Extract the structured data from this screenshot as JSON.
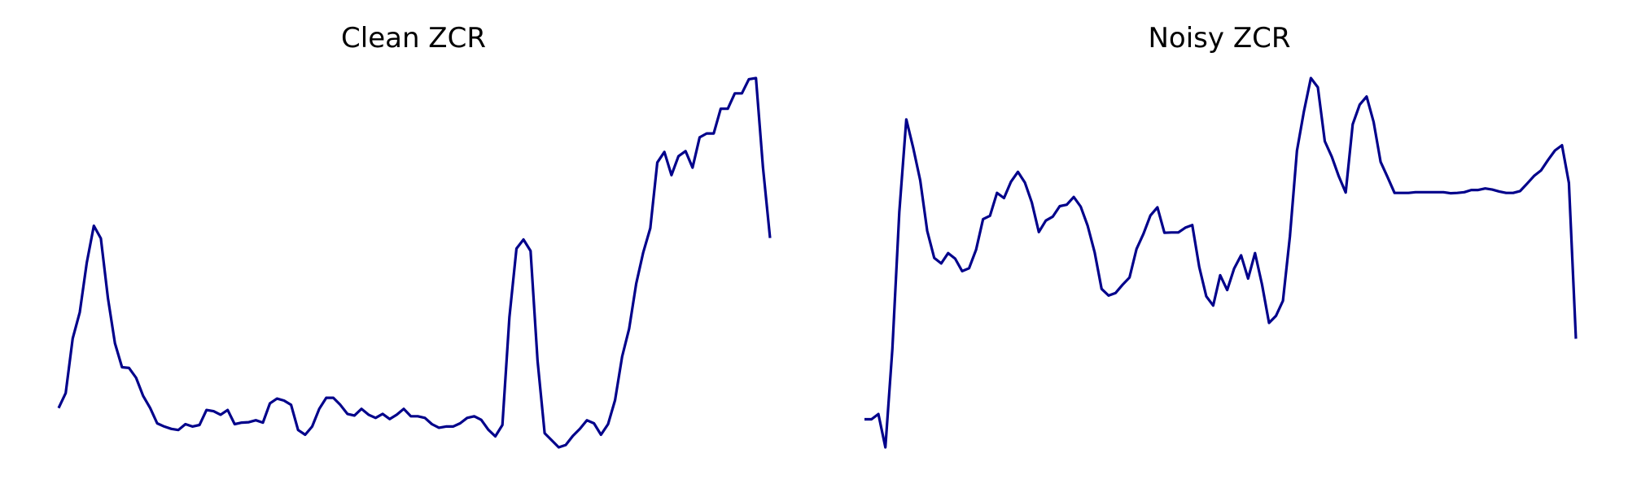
{
  "colors": {
    "line": "#00008b",
    "background": "#ffffff"
  },
  "chart_data": [
    {
      "type": "line",
      "title": "Clean ZCR",
      "axes_visible": false,
      "grid": false,
      "legend": "none",
      "series": [
        {
          "values": [
            0.16,
            0.198,
            0.337,
            0.404,
            0.53,
            0.624,
            0.592,
            0.44,
            0.325,
            0.264,
            0.262,
            0.237,
            0.191,
            0.16,
            0.121,
            0.113,
            0.107,
            0.104,
            0.119,
            0.113,
            0.117,
            0.155,
            0.152,
            0.143,
            0.155,
            0.119,
            0.123,
            0.124,
            0.129,
            0.123,
            0.172,
            0.184,
            0.179,
            0.168,
            0.104,
            0.092,
            0.113,
            0.158,
            0.186,
            0.186,
            0.168,
            0.145,
            0.141,
            0.158,
            0.143,
            0.135,
            0.145,
            0.132,
            0.143,
            0.158,
            0.139,
            0.139,
            0.135,
            0.119,
            0.11,
            0.113,
            0.113,
            0.121,
            0.135,
            0.139,
            0.13,
            0.105,
            0.088,
            0.117,
            0.391,
            0.566,
            0.589,
            0.56,
            0.28,
            0.096,
            0.078,
            0.06,
            0.066,
            0.089,
            0.107,
            0.129,
            0.121,
            0.092,
            0.119,
            0.18,
            0.291,
            0.362,
            0.477,
            0.556,
            0.618,
            0.785,
            0.812,
            0.753,
            0.801,
            0.814,
            0.772,
            0.849,
            0.859,
            0.859,
            0.922,
            0.922,
            0.961,
            0.961,
            0.997,
            1.0,
            0.773,
            0.593
          ]
        }
      ]
    },
    {
      "type": "line",
      "title": "Noisy ZCR",
      "axes_visible": false,
      "grid": false,
      "legend": "none",
      "series": [
        {
          "values": [
            0.076,
            0.076,
            0.09,
            0.0,
            0.267,
            0.637,
            0.888,
            0.81,
            0.723,
            0.586,
            0.513,
            0.498,
            0.526,
            0.511,
            0.477,
            0.485,
            0.535,
            0.618,
            0.627,
            0.689,
            0.675,
            0.719,
            0.746,
            0.717,
            0.663,
            0.583,
            0.614,
            0.625,
            0.653,
            0.657,
            0.678,
            0.652,
            0.6,
            0.528,
            0.429,
            0.411,
            0.418,
            0.44,
            0.46,
            0.537,
            0.578,
            0.628,
            0.65,
            0.581,
            0.582,
            0.582,
            0.595,
            0.602,
            0.488,
            0.409,
            0.384,
            0.466,
            0.426,
            0.484,
            0.52,
            0.457,
            0.526,
            0.441,
            0.337,
            0.356,
            0.397,
            0.572,
            0.803,
            0.909,
            1.0,
            0.975,
            0.829,
            0.787,
            0.734,
            0.69,
            0.875,
            0.928,
            0.95,
            0.881,
            0.773,
            0.732,
            0.689,
            0.689,
            0.689,
            0.691,
            0.691,
            0.691,
            0.691,
            0.691,
            0.688,
            0.689,
            0.691,
            0.697,
            0.697,
            0.701,
            0.698,
            0.693,
            0.689,
            0.689,
            0.694,
            0.714,
            0.735,
            0.75,
            0.778,
            0.804,
            0.818,
            0.716,
            0.294
          ]
        }
      ]
    }
  ]
}
